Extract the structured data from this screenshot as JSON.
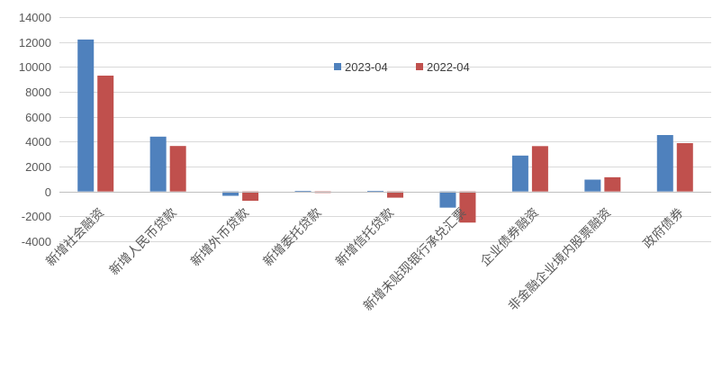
{
  "chart_data": {
    "type": "bar",
    "title": "",
    "xlabel": "",
    "ylabel": "",
    "ylim": [
      -4000,
      14000
    ],
    "yticks": [
      -4000,
      -2000,
      0,
      2000,
      4000,
      6000,
      8000,
      10000,
      12000,
      14000
    ],
    "grid": true,
    "legend_position": "top-center",
    "categories": [
      "新增社会融资",
      "新增人民币贷款",
      "新增外币贷款",
      "新增委托贷款",
      "新增信托贷款",
      "新增未贴现银行承兑汇票",
      "企业债券融资",
      "非金融企业境内股票融资",
      "政府债券"
    ],
    "series": [
      {
        "name": "2023-04",
        "color": "#4F81BD",
        "values": [
          12200,
          4400,
          -350,
          30,
          30,
          -1300,
          2880,
          950,
          4530
        ]
      },
      {
        "name": "2022-04",
        "color": "#C0504D",
        "values": [
          9300,
          3650,
          -750,
          -120,
          -500,
          -2500,
          3640,
          1140,
          3880
        ]
      }
    ]
  }
}
